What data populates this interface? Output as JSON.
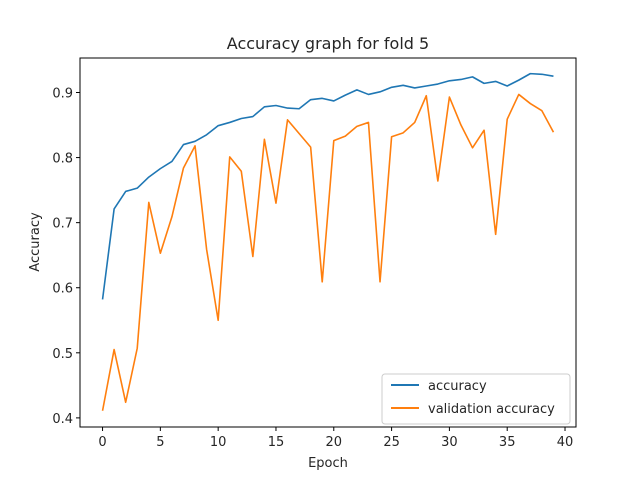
{
  "chart_data": {
    "type": "line",
    "title": "Accuracy graph for fold 5",
    "xlabel": "Epoch",
    "ylabel": "Accuracy",
    "xlim": [
      -1.95,
      40.95
    ],
    "ylim": [
      0.386,
      0.953
    ],
    "xticks": [
      0,
      5,
      10,
      15,
      20,
      25,
      30,
      35,
      40
    ],
    "yticks": [
      0.4,
      0.5,
      0.6,
      0.7,
      0.8,
      0.9
    ],
    "xtick_labels": [
      "0",
      "5",
      "10",
      "15",
      "20",
      "25",
      "30",
      "35",
      "40"
    ],
    "ytick_labels": [
      "0.4",
      "0.5",
      "0.6",
      "0.7",
      "0.8",
      "0.9"
    ],
    "grid": false,
    "legend_position": "lower right",
    "x": [
      0,
      1,
      2,
      3,
      4,
      5,
      6,
      7,
      8,
      9,
      10,
      11,
      12,
      13,
      14,
      15,
      16,
      17,
      18,
      19,
      20,
      21,
      22,
      23,
      24,
      25,
      26,
      27,
      28,
      29,
      30,
      31,
      32,
      33,
      34,
      35,
      36,
      37,
      38,
      39
    ],
    "series": [
      {
        "name": "accuracy",
        "color": "#1f77b4",
        "values": [
          0.582,
          0.721,
          0.748,
          0.753,
          0.77,
          0.783,
          0.794,
          0.82,
          0.825,
          0.835,
          0.849,
          0.854,
          0.86,
          0.863,
          0.878,
          0.88,
          0.876,
          0.875,
          0.889,
          0.891,
          0.887,
          0.896,
          0.904,
          0.897,
          0.901,
          0.908,
          0.911,
          0.907,
          0.91,
          0.913,
          0.918,
          0.92,
          0.924,
          0.914,
          0.917,
          0.91,
          0.919,
          0.929,
          0.928,
          0.925
        ]
      },
      {
        "name": "validation accuracy",
        "color": "#ff7f0e",
        "values": [
          0.411,
          0.505,
          0.424,
          0.507,
          0.731,
          0.653,
          0.709,
          0.784,
          0.818,
          0.659,
          0.55,
          0.801,
          0.779,
          0.648,
          0.828,
          0.73,
          0.858,
          0.837,
          0.816,
          0.609,
          0.826,
          0.833,
          0.848,
          0.854,
          0.609,
          0.832,
          0.838,
          0.854,
          0.895,
          0.764,
          0.893,
          0.85,
          0.815,
          0.842,
          0.682,
          0.859,
          0.897,
          0.883,
          0.872,
          0.839
        ]
      }
    ]
  }
}
